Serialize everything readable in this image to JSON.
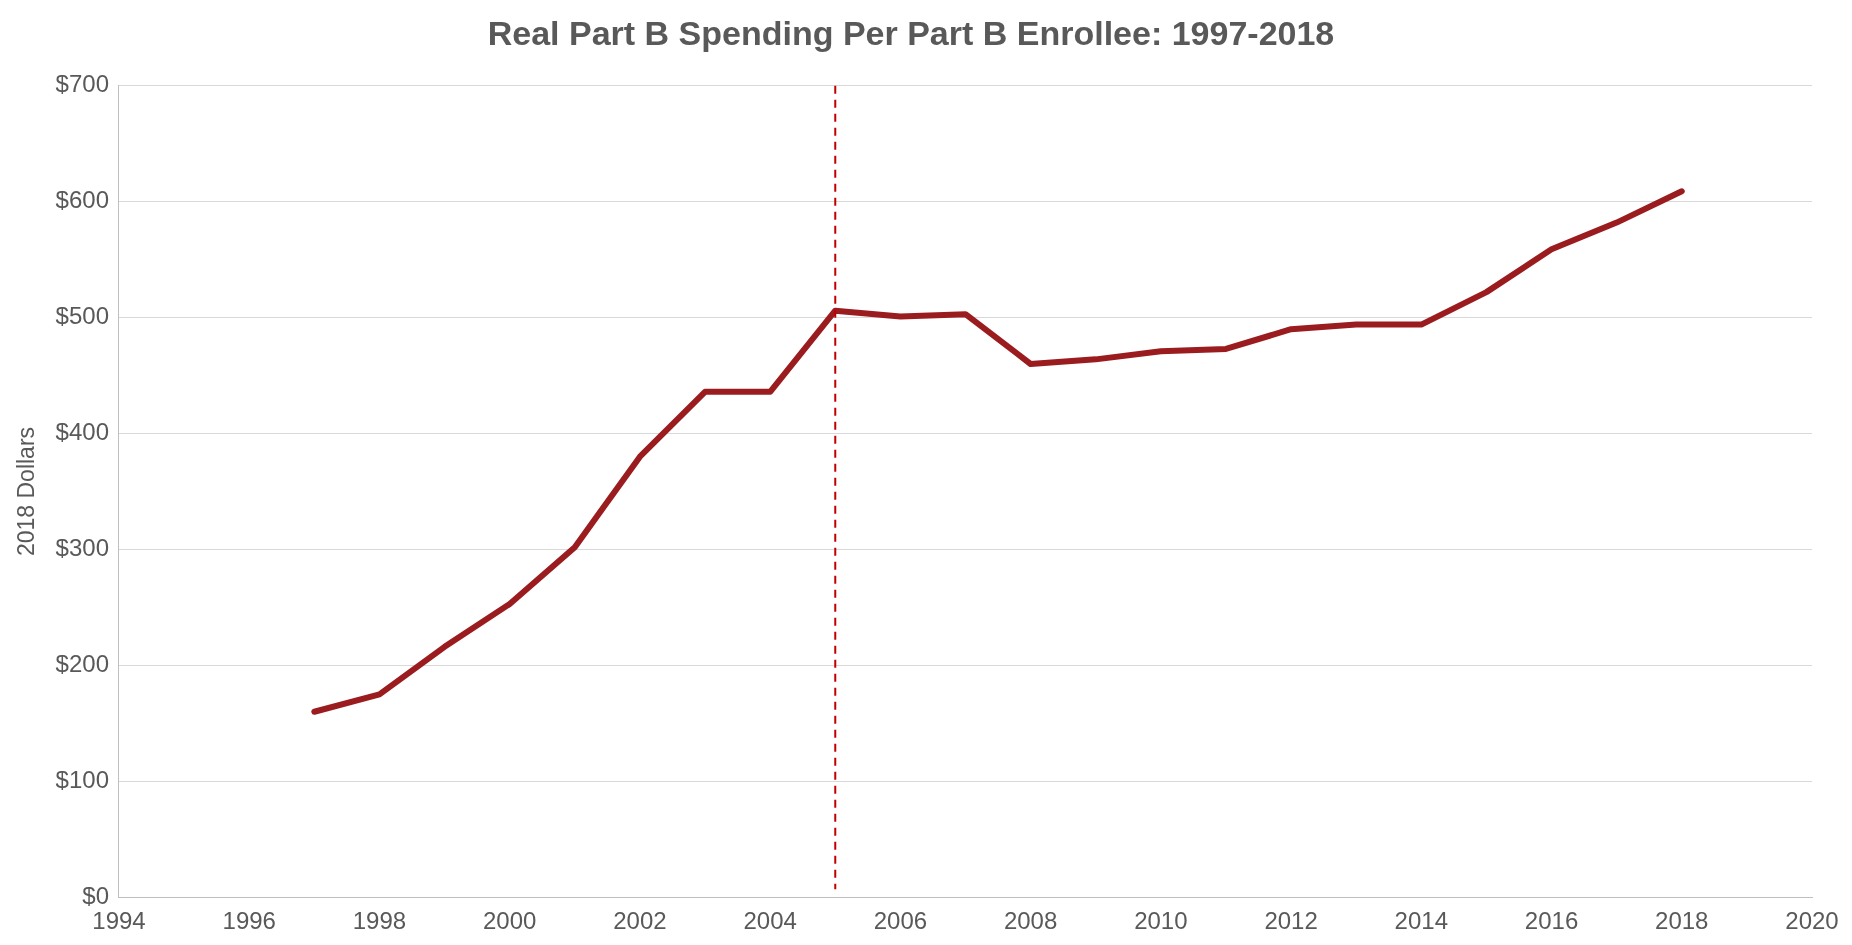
{
  "chart_data": {
    "type": "line",
    "title": "Real Part B Spending Per Part B Enrollee: 1997-2018",
    "ylabel": "2018 Dollars",
    "x": [
      1997,
      1998,
      1999,
      2000,
      2001,
      2002,
      2003,
      2004,
      2005,
      2006,
      2007,
      2008,
      2009,
      2010,
      2011,
      2012,
      2013,
      2014,
      2015,
      2016,
      2017,
      2018
    ],
    "series": [
      {
        "color": "#9b1c1f",
        "values": [
          160,
          175,
          216,
          253,
          302,
          380,
          436,
          436,
          506,
          501,
          503,
          460,
          464,
          471,
          473,
          490,
          494,
          494,
          522,
          559,
          582,
          609
        ]
      }
    ],
    "xlim": [
      1994,
      2020
    ],
    "xticks": [
      1994,
      1996,
      1998,
      2000,
      2002,
      2004,
      2006,
      2008,
      2010,
      2012,
      2014,
      2016,
      2018,
      2020
    ],
    "ylim": [
      0,
      700
    ],
    "yticks": [
      {
        "value": 0,
        "label": "$0"
      },
      {
        "value": 100,
        "label": "$100"
      },
      {
        "value": 200,
        "label": "$200"
      },
      {
        "value": 300,
        "label": "$300"
      },
      {
        "value": 400,
        "label": "$400"
      },
      {
        "value": 500,
        "label": "$500"
      },
      {
        "value": 600,
        "label": "$600"
      },
      {
        "value": 700,
        "label": "$700"
      }
    ],
    "ref_lines": [
      {
        "axis": "x",
        "value": 2005,
        "color": "#c00000",
        "line_style": "dashed"
      }
    ],
    "grid": "y",
    "legend": false,
    "marker": "none",
    "line_style": "solid"
  }
}
